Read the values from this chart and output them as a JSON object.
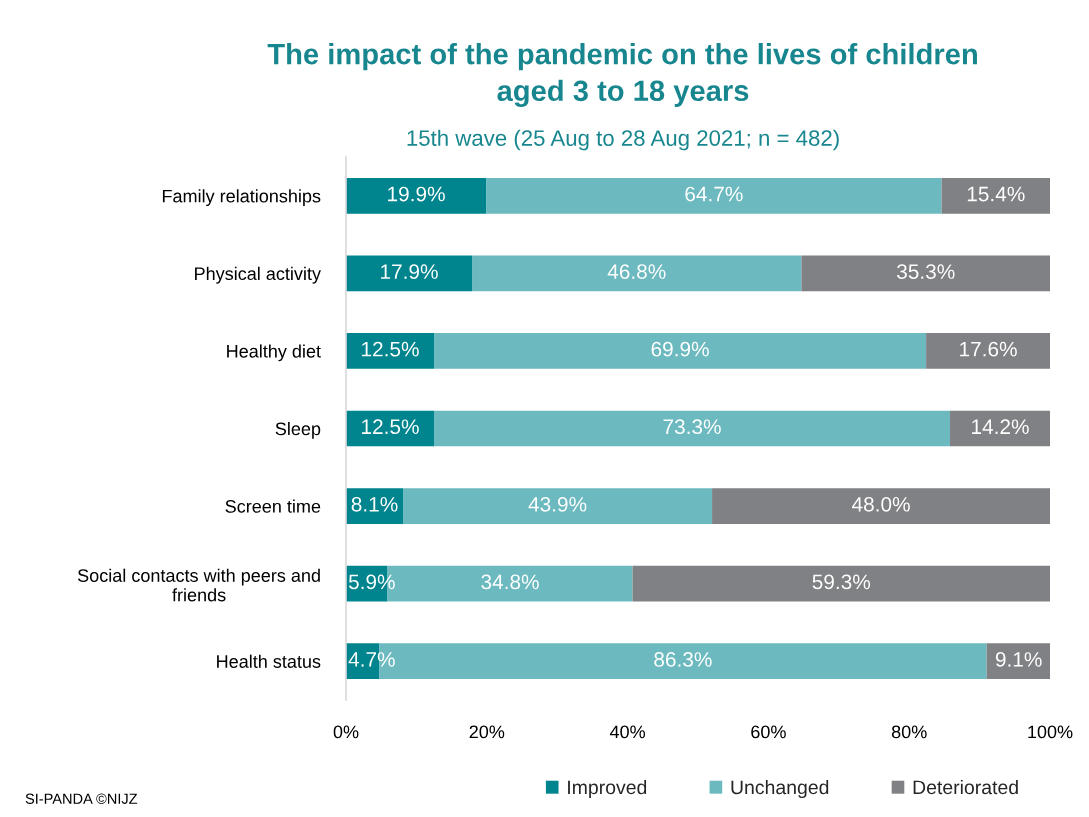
{
  "chart_data": {
    "type": "bar",
    "orientation": "horizontal",
    "stacked": true,
    "title": "The impact of the pandemic on the lives of children\naged 3 to 18 years",
    "subtitle": "15th wave (25 Aug to 28 Aug 2021; n = 482)",
    "categories": [
      "Family relationships",
      "Physical activity",
      "Healthy diet",
      "Sleep",
      "Screen time",
      "Social contacts with peers and\nfriends",
      "Health status"
    ],
    "series": [
      {
        "name": "Improved",
        "color": "#00858f",
        "values": [
          19.9,
          17.9,
          12.5,
          12.5,
          8.1,
          5.9,
          4.7
        ],
        "value_labels": [
          "19.9%",
          "17.9%",
          "12.5%",
          "12.5%",
          "8.1%",
          "5.9%",
          "4.7%"
        ]
      },
      {
        "name": "Unchanged",
        "color": "#6cbac0",
        "values": [
          64.7,
          46.8,
          69.9,
          73.3,
          43.9,
          34.8,
          86.3
        ],
        "value_labels": [
          "64.7%",
          "46.8%",
          "69.9%",
          "73.3%",
          "43.9%",
          "34.8%",
          "86.3%"
        ]
      },
      {
        "name": "Deteriorated",
        "color": "#808184",
        "values": [
          15.4,
          35.3,
          17.6,
          14.2,
          48.0,
          59.3,
          9.1
        ],
        "value_labels": [
          "15.4%",
          "35.3%",
          "17.6%",
          "14.2%",
          "48.0%",
          "59.3%",
          "9.1%"
        ]
      }
    ],
    "xlim": [
      0,
      100
    ],
    "xticks": [
      {
        "value": 0,
        "label": "0%"
      },
      {
        "value": 20,
        "label": "20%"
      },
      {
        "value": 40,
        "label": "40%"
      },
      {
        "value": 60,
        "label": "60%"
      },
      {
        "value": 80,
        "label": "80%"
      },
      {
        "value": 100,
        "label": "100%"
      }
    ],
    "legend": "bottom",
    "annotations": [
      "SI-PANDA ©NIJZ"
    ]
  }
}
